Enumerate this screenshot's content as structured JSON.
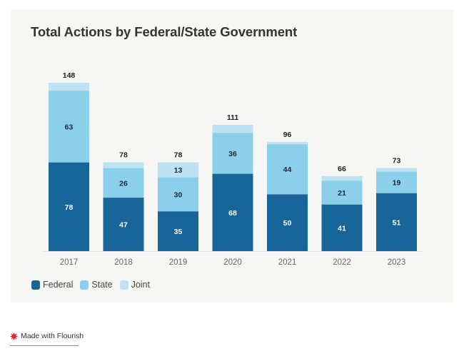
{
  "chart_data": {
    "type": "bar",
    "stacked": true,
    "title": "Total Actions by Federal/State Government",
    "xlabel": "",
    "ylabel": "",
    "categories": [
      "2017",
      "2018",
      "2019",
      "2020",
      "2021",
      "2022",
      "2023"
    ],
    "series": [
      {
        "name": "Federal",
        "color": "#176599",
        "values": [
          78,
          47,
          35,
          68,
          50,
          41,
          51
        ],
        "labels": [
          "78",
          "47",
          "35",
          "68",
          "50",
          "41",
          "51"
        ]
      },
      {
        "name": "State",
        "color": "#8ccfea",
        "values": [
          63,
          26,
          30,
          36,
          44,
          21,
          19
        ],
        "labels": [
          "63",
          "26",
          "30",
          "36",
          "44",
          "21",
          "19"
        ]
      },
      {
        "name": "Joint",
        "color": "#bde2f2",
        "values": [
          7,
          5,
          13,
          7,
          2,
          4,
          3
        ],
        "labels": [
          "",
          "",
          "13",
          "",
          "",
          "",
          ""
        ]
      }
    ],
    "totals": [
      148,
      78,
      78,
      111,
      96,
      66,
      73
    ],
    "ylim": [
      0,
      148
    ],
    "grid": false,
    "legend_position": "bottom-left"
  },
  "legend": [
    {
      "label": "Federal",
      "color": "#176599"
    },
    {
      "label": "State",
      "color": "#8ccfea"
    },
    {
      "label": "Joint",
      "color": "#bde2f2"
    }
  ],
  "footer": {
    "text": "Made with Flourish",
    "icon": "flourish-icon"
  }
}
